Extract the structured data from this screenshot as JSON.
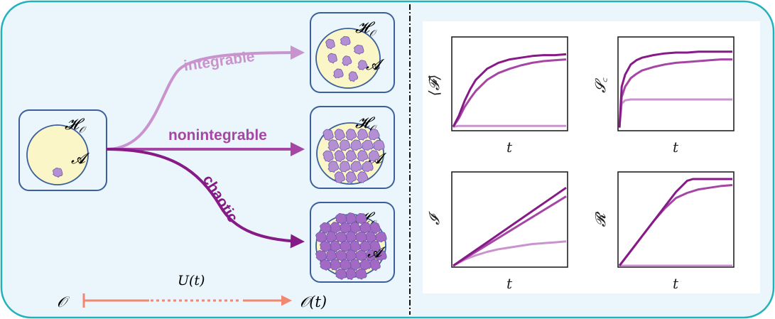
{
  "colors": {
    "background": "#eaf6fb",
    "frame": "#1fb3bb",
    "box_border": "#3b5f9a",
    "ellipse_fill": "#fbf6c8",
    "blob_fill": "#b48fd4",
    "integrable": "#c993cd",
    "nonintegrable": "#a546a4",
    "chaotic": "#861a86",
    "time_arrow": "#f28870",
    "plot_bg": "#ffffff"
  },
  "labels": {
    "hilbert_space": "𝓗",
    "hilbert_subscript": "𝒪",
    "subspace": "𝓐",
    "integrable": "integrable",
    "nonintegrable": "nonintegrable",
    "chaotic": "chaotic",
    "evolution": "U(t)",
    "operator_start": "𝒪",
    "operator_end": "𝒪(t)"
  },
  "chart_data": [
    {
      "type": "line",
      "ylabel": "⟨𝓕⟩",
      "xlabel": "t",
      "ylim": [
        0,
        1
      ],
      "x": [
        0,
        0.05,
        0.1,
        0.15,
        0.2,
        0.3,
        0.4,
        0.5,
        0.6,
        0.7,
        0.8,
        0.9,
        1.0
      ],
      "series": [
        {
          "values": [
            0.03,
            0.04,
            0.04,
            0.04,
            0.04,
            0.04,
            0.04,
            0.04,
            0.04,
            0.04,
            0.04,
            0.04,
            0.04
          ]
        },
        {
          "values": [
            0.03,
            0.13,
            0.26,
            0.36,
            0.45,
            0.58,
            0.66,
            0.71,
            0.75,
            0.78,
            0.8,
            0.81,
            0.82
          ]
        },
        {
          "values": [
            0.03,
            0.16,
            0.33,
            0.47,
            0.58,
            0.71,
            0.78,
            0.82,
            0.84,
            0.86,
            0.87,
            0.87,
            0.88
          ]
        }
      ]
    },
    {
      "type": "line",
      "ylabel": "𝓢꜀",
      "xlabel": "t",
      "ylim": [
        0,
        1
      ],
      "x": [
        0,
        0.02,
        0.05,
        0.1,
        0.15,
        0.2,
        0.3,
        0.4,
        0.5,
        0.6,
        0.7,
        0.8,
        0.9,
        1.0
      ],
      "series": [
        {
          "values": [
            0.02,
            0.3,
            0.34,
            0.35,
            0.35,
            0.35,
            0.35,
            0.35,
            0.35,
            0.35,
            0.35,
            0.35,
            0.35,
            0.35
          ]
        },
        {
          "values": [
            0.02,
            0.38,
            0.5,
            0.6,
            0.65,
            0.69,
            0.73,
            0.76,
            0.78,
            0.79,
            0.8,
            0.81,
            0.82,
            0.82
          ]
        },
        {
          "values": [
            0.02,
            0.5,
            0.64,
            0.76,
            0.81,
            0.84,
            0.87,
            0.89,
            0.9,
            0.9,
            0.91,
            0.91,
            0.91,
            0.91
          ]
        }
      ]
    },
    {
      "type": "line",
      "ylabel": "𝓘",
      "xlabel": "t",
      "ylim": [
        0,
        1
      ],
      "x": [
        0,
        0.1,
        0.2,
        0.3,
        0.4,
        0.5,
        0.6,
        0.7,
        0.8,
        0.9,
        1.0
      ],
      "series": [
        {
          "values": [
            0.0,
            0.07,
            0.12,
            0.16,
            0.19,
            0.21,
            0.23,
            0.25,
            0.26,
            0.27,
            0.28
          ]
        },
        {
          "values": [
            0.0,
            0.08,
            0.16,
            0.24,
            0.32,
            0.4,
            0.48,
            0.56,
            0.64,
            0.72,
            0.8
          ]
        },
        {
          "values": [
            0.0,
            0.09,
            0.18,
            0.27,
            0.36,
            0.45,
            0.54,
            0.63,
            0.72,
            0.81,
            0.9
          ]
        }
      ]
    },
    {
      "type": "line",
      "ylabel": "𝓡",
      "xlabel": "t",
      "ylim": [
        0,
        1
      ],
      "x": [
        0,
        0.1,
        0.2,
        0.3,
        0.4,
        0.5,
        0.6,
        0.65,
        0.7,
        0.8,
        0.9,
        1.0
      ],
      "series": [
        {
          "values": [
            0.0,
            0.0,
            0.0,
            0.0,
            0.0,
            0.0,
            0.0,
            0.0,
            0.0,
            0.0,
            0.0,
            0.0
          ]
        },
        {
          "values": [
            0.0,
            0.17,
            0.34,
            0.51,
            0.66,
            0.78,
            0.84,
            0.86,
            0.88,
            0.9,
            0.92,
            0.93
          ]
        },
        {
          "values": [
            0.0,
            0.17,
            0.34,
            0.51,
            0.68,
            0.85,
            0.98,
            1.0,
            1.0,
            1.0,
            1.0,
            1.0
          ]
        }
      ]
    }
  ]
}
